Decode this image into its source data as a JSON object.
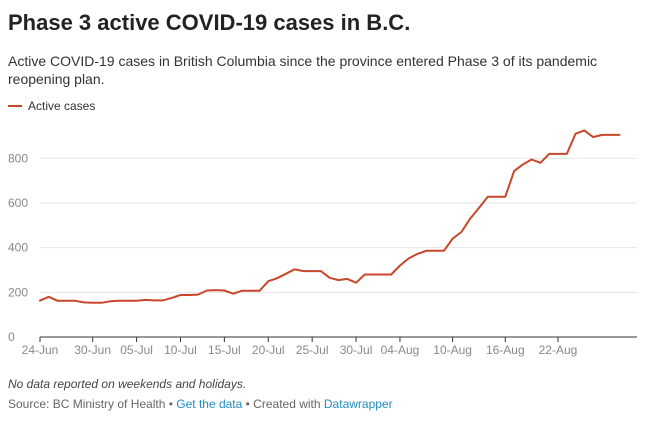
{
  "title": "Phase 3 active COVID-19 cases in B.C.",
  "subtitle": "Active COVID-19 cases in British Columbia since the province entered Phase 3 of its pandemic reopening plan.",
  "note": "No data reported on weekends and holidays.",
  "footer": {
    "source": "Source: BC Ministry of Health",
    "sep1": " • ",
    "get_data": "Get the data",
    "sep2": " • Created with ",
    "datawrapper": "Datawrapper"
  },
  "colors": {
    "line": "#c8472b",
    "grid": "#e6e6e6",
    "axis": "#333333",
    "tick_text": "#888888",
    "link": "#1f8ec2"
  },
  "chart_data": {
    "type": "line",
    "title": "Phase 3 active COVID-19 cases in B.C.",
    "xlabel": "",
    "ylabel": "",
    "ylim": [
      0,
      900
    ],
    "yticks": [
      0,
      200,
      400,
      600,
      800
    ],
    "grid": true,
    "legend_position": "top-left",
    "x_tick_labels": [
      "24-Jun",
      "30-Jun",
      "05-Jul",
      "10-Jul",
      "15-Jul",
      "20-Jul",
      "25-Jul",
      "30-Jul",
      "04-Aug",
      "10-Aug",
      "16-Aug",
      "22-Aug"
    ],
    "x_tick_days": [
      0,
      6,
      11,
      16,
      21,
      26,
      31,
      36,
      41,
      47,
      53,
      59
    ],
    "x_range_days": [
      0,
      68
    ],
    "series": [
      {
        "name": "Active cases",
        "color": "#c8472b",
        "x_days": [
          0,
          1,
          2,
          3,
          4,
          5,
          6,
          7,
          8,
          9,
          10,
          11,
          12,
          13,
          14,
          15,
          16,
          17,
          18,
          19,
          20,
          21,
          22,
          23,
          24,
          25,
          26,
          27,
          28,
          29,
          30,
          31,
          32,
          33,
          34,
          35,
          36,
          37,
          38,
          39,
          40,
          41,
          42,
          43,
          44,
          45,
          46,
          47,
          48,
          49,
          50,
          51,
          52,
          53,
          54,
          55,
          56,
          57,
          58,
          59,
          60,
          61,
          62,
          63,
          64,
          65,
          66
        ],
        "values": [
          163,
          180,
          162,
          162,
          162,
          155,
          153,
          153,
          160,
          162,
          162,
          162,
          166,
          164,
          164,
          175,
          188,
          188,
          190,
          208,
          210,
          208,
          194,
          207,
          207,
          207,
          250,
          263,
          283,
          303,
          295,
          295,
          295,
          265,
          255,
          260,
          243,
          280,
          280,
          280,
          280,
          320,
          352,
          372,
          386,
          386,
          386,
          440,
          470,
          530,
          578,
          628,
          628,
          628,
          743,
          773,
          795,
          780,
          820,
          820,
          820,
          910,
          925,
          895,
          905,
          905,
          905
        ]
      }
    ]
  }
}
